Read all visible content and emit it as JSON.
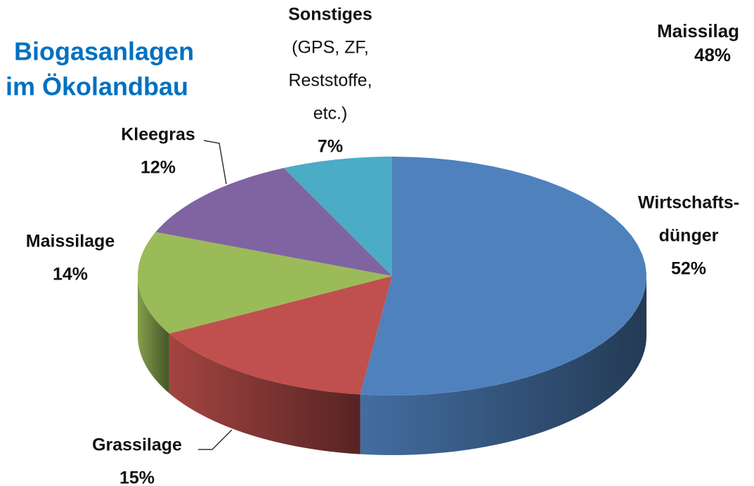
{
  "chart_data": {
    "type": "pie",
    "title_lines": [
      "Biogasanlagen",
      "im Ökolandbau"
    ],
    "categories": [
      [
        "Wirtschafts-",
        "dünger"
      ],
      [
        "Grassilage"
      ],
      [
        "Maissilage"
      ],
      [
        "Kleegras"
      ],
      [
        "Sonstiges"
      ]
    ],
    "category_details": [
      [],
      [],
      [],
      [],
      [
        "(GPS, ZF,",
        "Reststoffe,",
        "etc.)"
      ]
    ],
    "values": [
      52,
      15,
      14,
      12,
      7
    ],
    "value_labels": [
      "52%",
      "15%",
      "14%",
      "12%",
      "7%"
    ],
    "colors": [
      "#4f81bd",
      "#c0504d",
      "#9bbb59",
      "#8064a2",
      "#4bacc6"
    ],
    "annotations": [
      "Maissilag",
      "48%"
    ]
  }
}
